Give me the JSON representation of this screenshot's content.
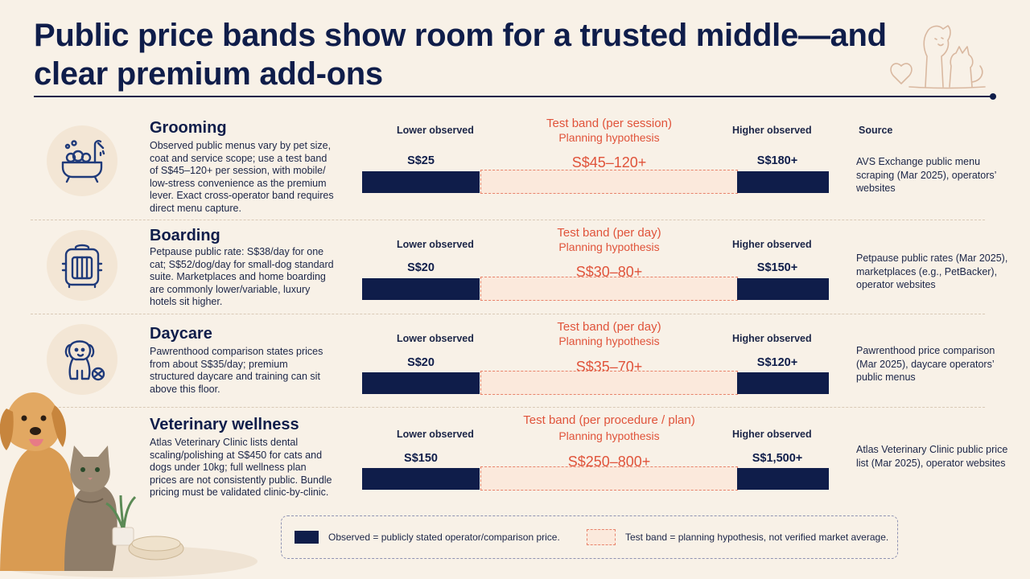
{
  "title": "Public price bands show room for a trusted middle—and clear premium add-ons",
  "source_header": "Source",
  "rows": [
    {
      "icon": "bathtub-icon",
      "title": "Grooming",
      "description": "Observed public menus vary by pet size, coat and service scope; use a test band of S$45–120+ per session, with mobile/ low-stress convenience as the premium lever. Exact cross-operator band requires direct menu capture.",
      "lower_label": "Lower observed",
      "higher_label": "Higher observed",
      "band_title": "Test band (per session)",
      "band_subtitle": "Planning hypothesis",
      "lower_value": "S$25",
      "band_value": "S$45–120+",
      "higher_value": "S$180+",
      "source": "AVS Exchange public menu scraping (Mar 2025), operators’ websites"
    },
    {
      "icon": "pet-carrier-icon",
      "title": "Boarding",
      "description": "Petpause public rate: S$38/day for one cat; S$52/dog/day for small-dog standard suite. Marketplaces and home boarding are commonly lower/variable, luxury hotels sit higher.",
      "lower_label": "Lower observed",
      "higher_label": "Higher observed",
      "band_title": "Test band (per day)",
      "band_subtitle": "Planning hypothesis",
      "lower_value": "S$20",
      "band_value": "S$30–80+",
      "higher_value": "S$150+",
      "source": "Petpause public rates (Mar 2025), marketplaces (e.g., PetBacker), operator websites"
    },
    {
      "icon": "puppy-ball-icon",
      "title": "Daycare",
      "description": "Pawrenthood comparison states prices from about S$35/day; premium structured daycare and training can sit above this floor.",
      "lower_label": "Lower observed",
      "higher_label": "Higher observed",
      "band_title": "Test band (per day)",
      "band_subtitle": "Planning hypothesis",
      "lower_value": "S$20",
      "band_value": "S$35–70+",
      "higher_value": "S$120+",
      "source": "Pawrenthood price comparison (Mar 2025), daycare operators’ public menus"
    },
    {
      "icon": "",
      "title": "Veterinary wellness",
      "description": "Atlas Veterinary Clinic lists dental scaling/polishing at S$450 for cats and dogs under 10kg; full wellness plan prices are not consistently public. Bundle pricing must be validated clinic-by-clinic.",
      "lower_label": "Lower observed",
      "higher_label": "Higher observed",
      "band_title": "Test band (per procedure / plan)",
      "band_subtitle": "Planning hypothesis",
      "lower_value": "S$150",
      "band_value": "S$250–800+",
      "higher_value": "S$1,500+",
      "source": "Atlas Veterinary Clinic public price list (Mar 2025), operator websites"
    }
  ],
  "legend": {
    "observed": "Observed = publicly stated operator/comparison price.",
    "test_band": "Test band = planning hypothesis, not verified market average."
  },
  "colors": {
    "navy": "#0f1d4a",
    "band_accent": "#e0533a",
    "band_fill": "#fbe9dc",
    "background": "#f8f1e7"
  }
}
